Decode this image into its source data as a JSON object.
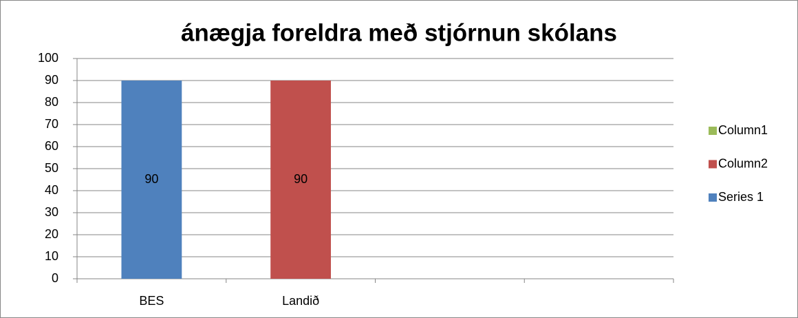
{
  "chart_data": {
    "type": "bar",
    "stacked": true,
    "title": "ánægja foreldra með stjórnun skólans",
    "categories": [
      "BES",
      "Landið",
      null,
      null
    ],
    "series": [
      {
        "name": "Column1",
        "color": "#9bbb59",
        "values": [
          null,
          null,
          null,
          null
        ]
      },
      {
        "name": "Column2",
        "color": "#c0504d",
        "values": [
          null,
          90,
          null,
          null
        ]
      },
      {
        "name": "Series 1",
        "color": "#4f81bd",
        "values": [
          90,
          null,
          null,
          null
        ]
      }
    ],
    "ylim": [
      0,
      100
    ],
    "yticks": [
      0,
      10,
      20,
      30,
      40,
      50,
      60,
      70,
      80,
      90,
      100
    ],
    "grid": true,
    "legend": "right",
    "data_labels": true
  }
}
